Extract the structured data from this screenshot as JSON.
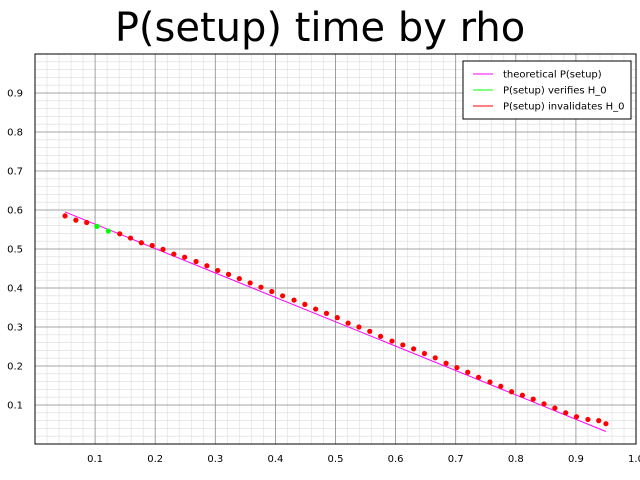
{
  "chart_data": {
    "type": "scatter",
    "title": "P(setup) time by rho",
    "xlabel": "",
    "ylabel": "",
    "xlim": [
      0,
      1.0
    ],
    "ylim": [
      0,
      1.0
    ],
    "grid": true,
    "legend_position": "top-right",
    "x_ticks": [
      "0.1",
      "0.2",
      "0.3",
      "0.4",
      "0.5",
      "0.6",
      "0.7",
      "0.8",
      "0.9",
      "1.0"
    ],
    "y_ticks": [
      "0.1",
      "0.2",
      "0.3",
      "0.4",
      "0.5",
      "0.6",
      "0.7",
      "0.8",
      "0.9"
    ],
    "legend": [
      {
        "label": "theoretical P(setup)",
        "color": "#ff00ff"
      },
      {
        "label": "P(setup) verifies H_0",
        "color": "#00ff00"
      },
      {
        "label": "P(setup) invalidates H_0",
        "color": "#ff0000"
      }
    ],
    "series": [
      {
        "name": "theoretical P(setup)",
        "type": "line",
        "color": "#ff00ff",
        "x": [
          0.05,
          0.95
        ],
        "y": [
          0.595,
          0.032
        ]
      },
      {
        "name": "P(setup) verifies H_0",
        "type": "scatter",
        "color": "#00ff00",
        "x": [
          0.103,
          0.122
        ],
        "y": [
          0.558,
          0.546
        ]
      },
      {
        "name": "P(setup) invalidates H_0",
        "type": "scatter",
        "color": "#ff0000",
        "x": [
          0.05,
          0.068,
          0.086,
          0.141,
          0.159,
          0.177,
          0.195,
          0.213,
          0.231,
          0.249,
          0.268,
          0.286,
          0.304,
          0.322,
          0.34,
          0.358,
          0.376,
          0.394,
          0.412,
          0.431,
          0.449,
          0.467,
          0.485,
          0.503,
          0.521,
          0.539,
          0.557,
          0.575,
          0.594,
          0.612,
          0.63,
          0.648,
          0.666,
          0.684,
          0.702,
          0.72,
          0.738,
          0.757,
          0.775,
          0.793,
          0.811,
          0.829,
          0.847,
          0.865,
          0.883,
          0.901,
          0.92,
          0.938,
          0.95
        ],
        "y": [
          0.585,
          0.574,
          0.568,
          0.539,
          0.528,
          0.516,
          0.509,
          0.499,
          0.487,
          0.479,
          0.468,
          0.457,
          0.445,
          0.435,
          0.424,
          0.413,
          0.402,
          0.391,
          0.38,
          0.369,
          0.358,
          0.346,
          0.335,
          0.324,
          0.31,
          0.3,
          0.289,
          0.276,
          0.264,
          0.254,
          0.244,
          0.232,
          0.221,
          0.207,
          0.196,
          0.184,
          0.171,
          0.159,
          0.148,
          0.134,
          0.125,
          0.115,
          0.103,
          0.092,
          0.08,
          0.07,
          0.063,
          0.06,
          0.052
        ]
      }
    ]
  }
}
